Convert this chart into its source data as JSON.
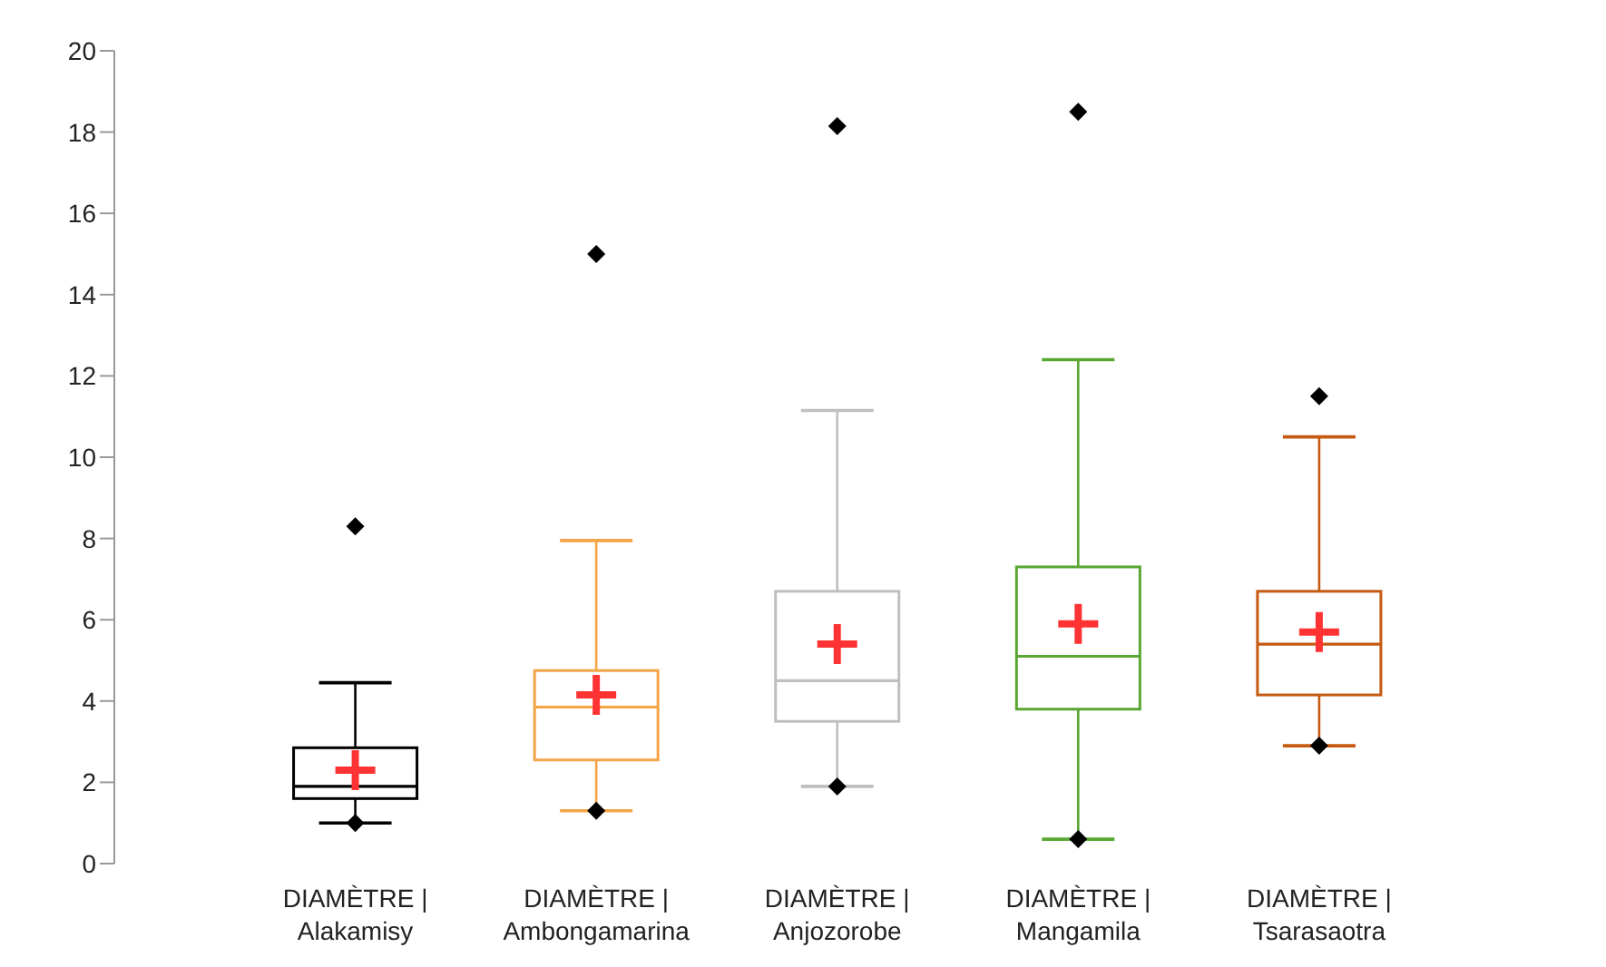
{
  "chart_data": {
    "type": "box",
    "categories": [
      "DIAMÈTRE | Alakamisy",
      "DIAMÈTRE | Ambongamarina",
      "DIAMÈTRE | Anjozorobe",
      "DIAMÈTRE | Mangamila",
      "DIAMÈTRE | Tsarasaotra"
    ],
    "colors": [
      "#000000",
      "#f5a347",
      "#bfbfbf",
      "#5aa632",
      "#c55a11"
    ],
    "boxes": [
      {
        "low": 1.0,
        "q1": 1.6,
        "median": 1.9,
        "q3": 2.85,
        "high": 4.45,
        "outliers": [
          8.3,
          1.0
        ]
      },
      {
        "low": 1.3,
        "q1": 2.55,
        "median": 3.85,
        "q3": 4.75,
        "high": 7.95,
        "outliers": [
          15.0,
          1.3
        ]
      },
      {
        "low": 1.9,
        "q1": 3.5,
        "median": 4.5,
        "q3": 6.7,
        "high": 11.15,
        "outliers": [
          18.15,
          1.9
        ]
      },
      {
        "low": 0.6,
        "q1": 3.8,
        "median": 5.1,
        "q3": 7.3,
        "high": 12.4,
        "outliers": [
          18.5,
          0.6
        ]
      },
      {
        "low": 2.9,
        "q1": 4.15,
        "median": 5.4,
        "q3": 6.7,
        "high": 10.5,
        "outliers": [
          11.5,
          2.9
        ]
      }
    ],
    "series": [
      {
        "type": "scatter",
        "color": "#ff3333",
        "marker": "cross",
        "x": [
          "DIAMÈTRE | Alakamisy",
          "DIAMÈTRE | Ambongamarina",
          "DIAMÈTRE | Anjozorobe",
          "DIAMÈTRE | Mangamila",
          "DIAMÈTRE | Tsarasaotra"
        ],
        "values": [
          2.3,
          4.15,
          5.4,
          5.9,
          5.7
        ]
      }
    ],
    "marker": "diamond",
    "ylim": [
      0,
      20
    ],
    "yticks": [
      0,
      2,
      4,
      6,
      8,
      10,
      12,
      14,
      16,
      18,
      20
    ]
  }
}
